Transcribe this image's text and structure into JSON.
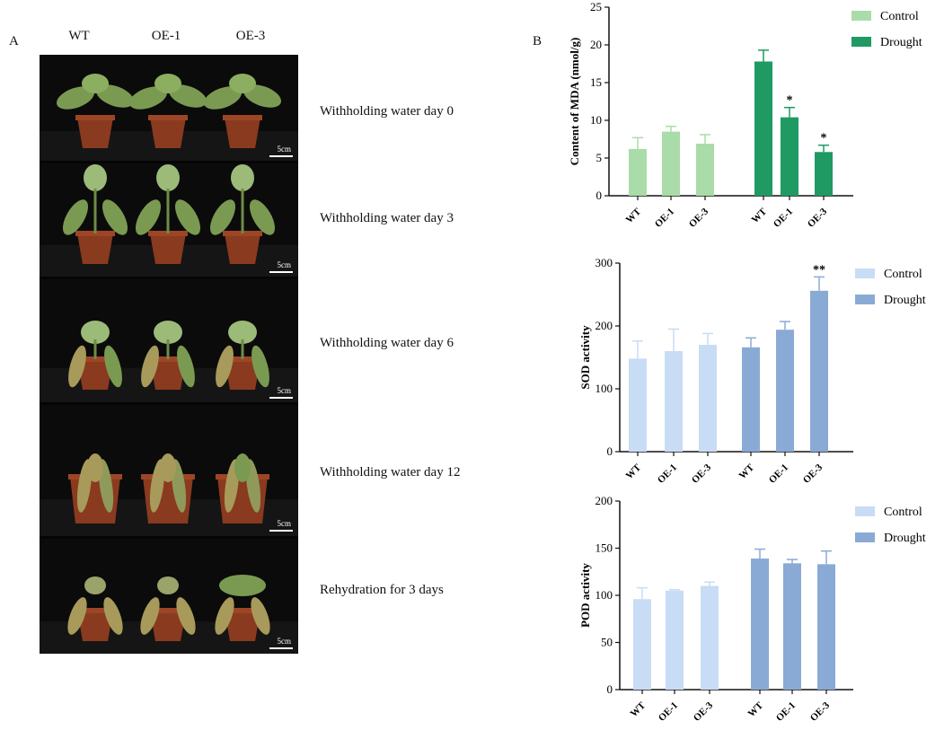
{
  "panel_a": {
    "letter": "A",
    "columns": [
      "WT",
      "OE-1",
      "OE-3"
    ],
    "scale_label": "5cm",
    "rows": [
      {
        "label": "Withholding water day 0",
        "stage": "healthy"
      },
      {
        "label": "Withholding water day 3",
        "stage": "mild"
      },
      {
        "label": "Withholding water day 6",
        "stage": "wilting"
      },
      {
        "label": "Withholding water day 12",
        "stage": "severe"
      },
      {
        "label": "Rehydration for 3 days",
        "stage": "recovery"
      }
    ],
    "colors": {
      "background": "#050505",
      "pot": "#8a3a1f",
      "leaf": "#7a9a52"
    }
  },
  "panel_b": {
    "letter": "B"
  },
  "chart_data": [
    {
      "type": "bar",
      "categories": [
        "WT",
        "OE-1",
        "OE-3"
      ],
      "ylabel": "Content of MDA (nmol/g)",
      "ylim": [
        0,
        25
      ],
      "yticks": [
        0,
        5,
        10,
        15,
        20,
        25
      ],
      "legend_position": "top-right",
      "series": [
        {
          "name": "Control",
          "color": "#a9dca8",
          "values": [
            6.2,
            8.5,
            6.9
          ],
          "errors": [
            1.5,
            0.7,
            1.2
          ],
          "marks": [
            "",
            "",
            ""
          ]
        },
        {
          "name": "Drought",
          "color": "#1f9a63",
          "values": [
            17.8,
            10.4,
            5.8
          ],
          "errors": [
            1.5,
            1.3,
            0.9
          ],
          "marks": [
            "",
            "*",
            "*"
          ]
        }
      ]
    },
    {
      "type": "bar",
      "categories": [
        "WT",
        "OE-1",
        "OE-3"
      ],
      "ylabel": "SOD activity",
      "ylim": [
        0,
        300
      ],
      "yticks": [
        0,
        100,
        200,
        300
      ],
      "legend_position": "top-right",
      "series": [
        {
          "name": "Control",
          "color": "#c9dcf5",
          "values": [
            148,
            160,
            170
          ],
          "errors": [
            28,
            35,
            18
          ],
          "marks": [
            "",
            "",
            ""
          ]
        },
        {
          "name": "Drought",
          "color": "#8aaad6",
          "values": [
            166,
            194,
            256
          ],
          "errors": [
            15,
            13,
            22
          ],
          "marks": [
            "",
            "",
            "**"
          ]
        }
      ]
    },
    {
      "type": "bar",
      "categories": [
        "WT",
        "OE-1",
        "OE-3"
      ],
      "ylabel": "POD activity",
      "ylim": [
        0,
        200
      ],
      "yticks": [
        0,
        50,
        100,
        150,
        200
      ],
      "legend_position": "top-right",
      "series": [
        {
          "name": "Control",
          "color": "#c9dcf5",
          "values": [
            96,
            105,
            110
          ],
          "errors": [
            12,
            1,
            4
          ],
          "marks": [
            "",
            "",
            ""
          ]
        },
        {
          "name": "Drought",
          "color": "#8aaad6",
          "values": [
            139,
            134,
            133
          ],
          "errors": [
            10,
            4,
            14
          ],
          "marks": [
            "",
            "",
            ""
          ]
        }
      ]
    }
  ]
}
